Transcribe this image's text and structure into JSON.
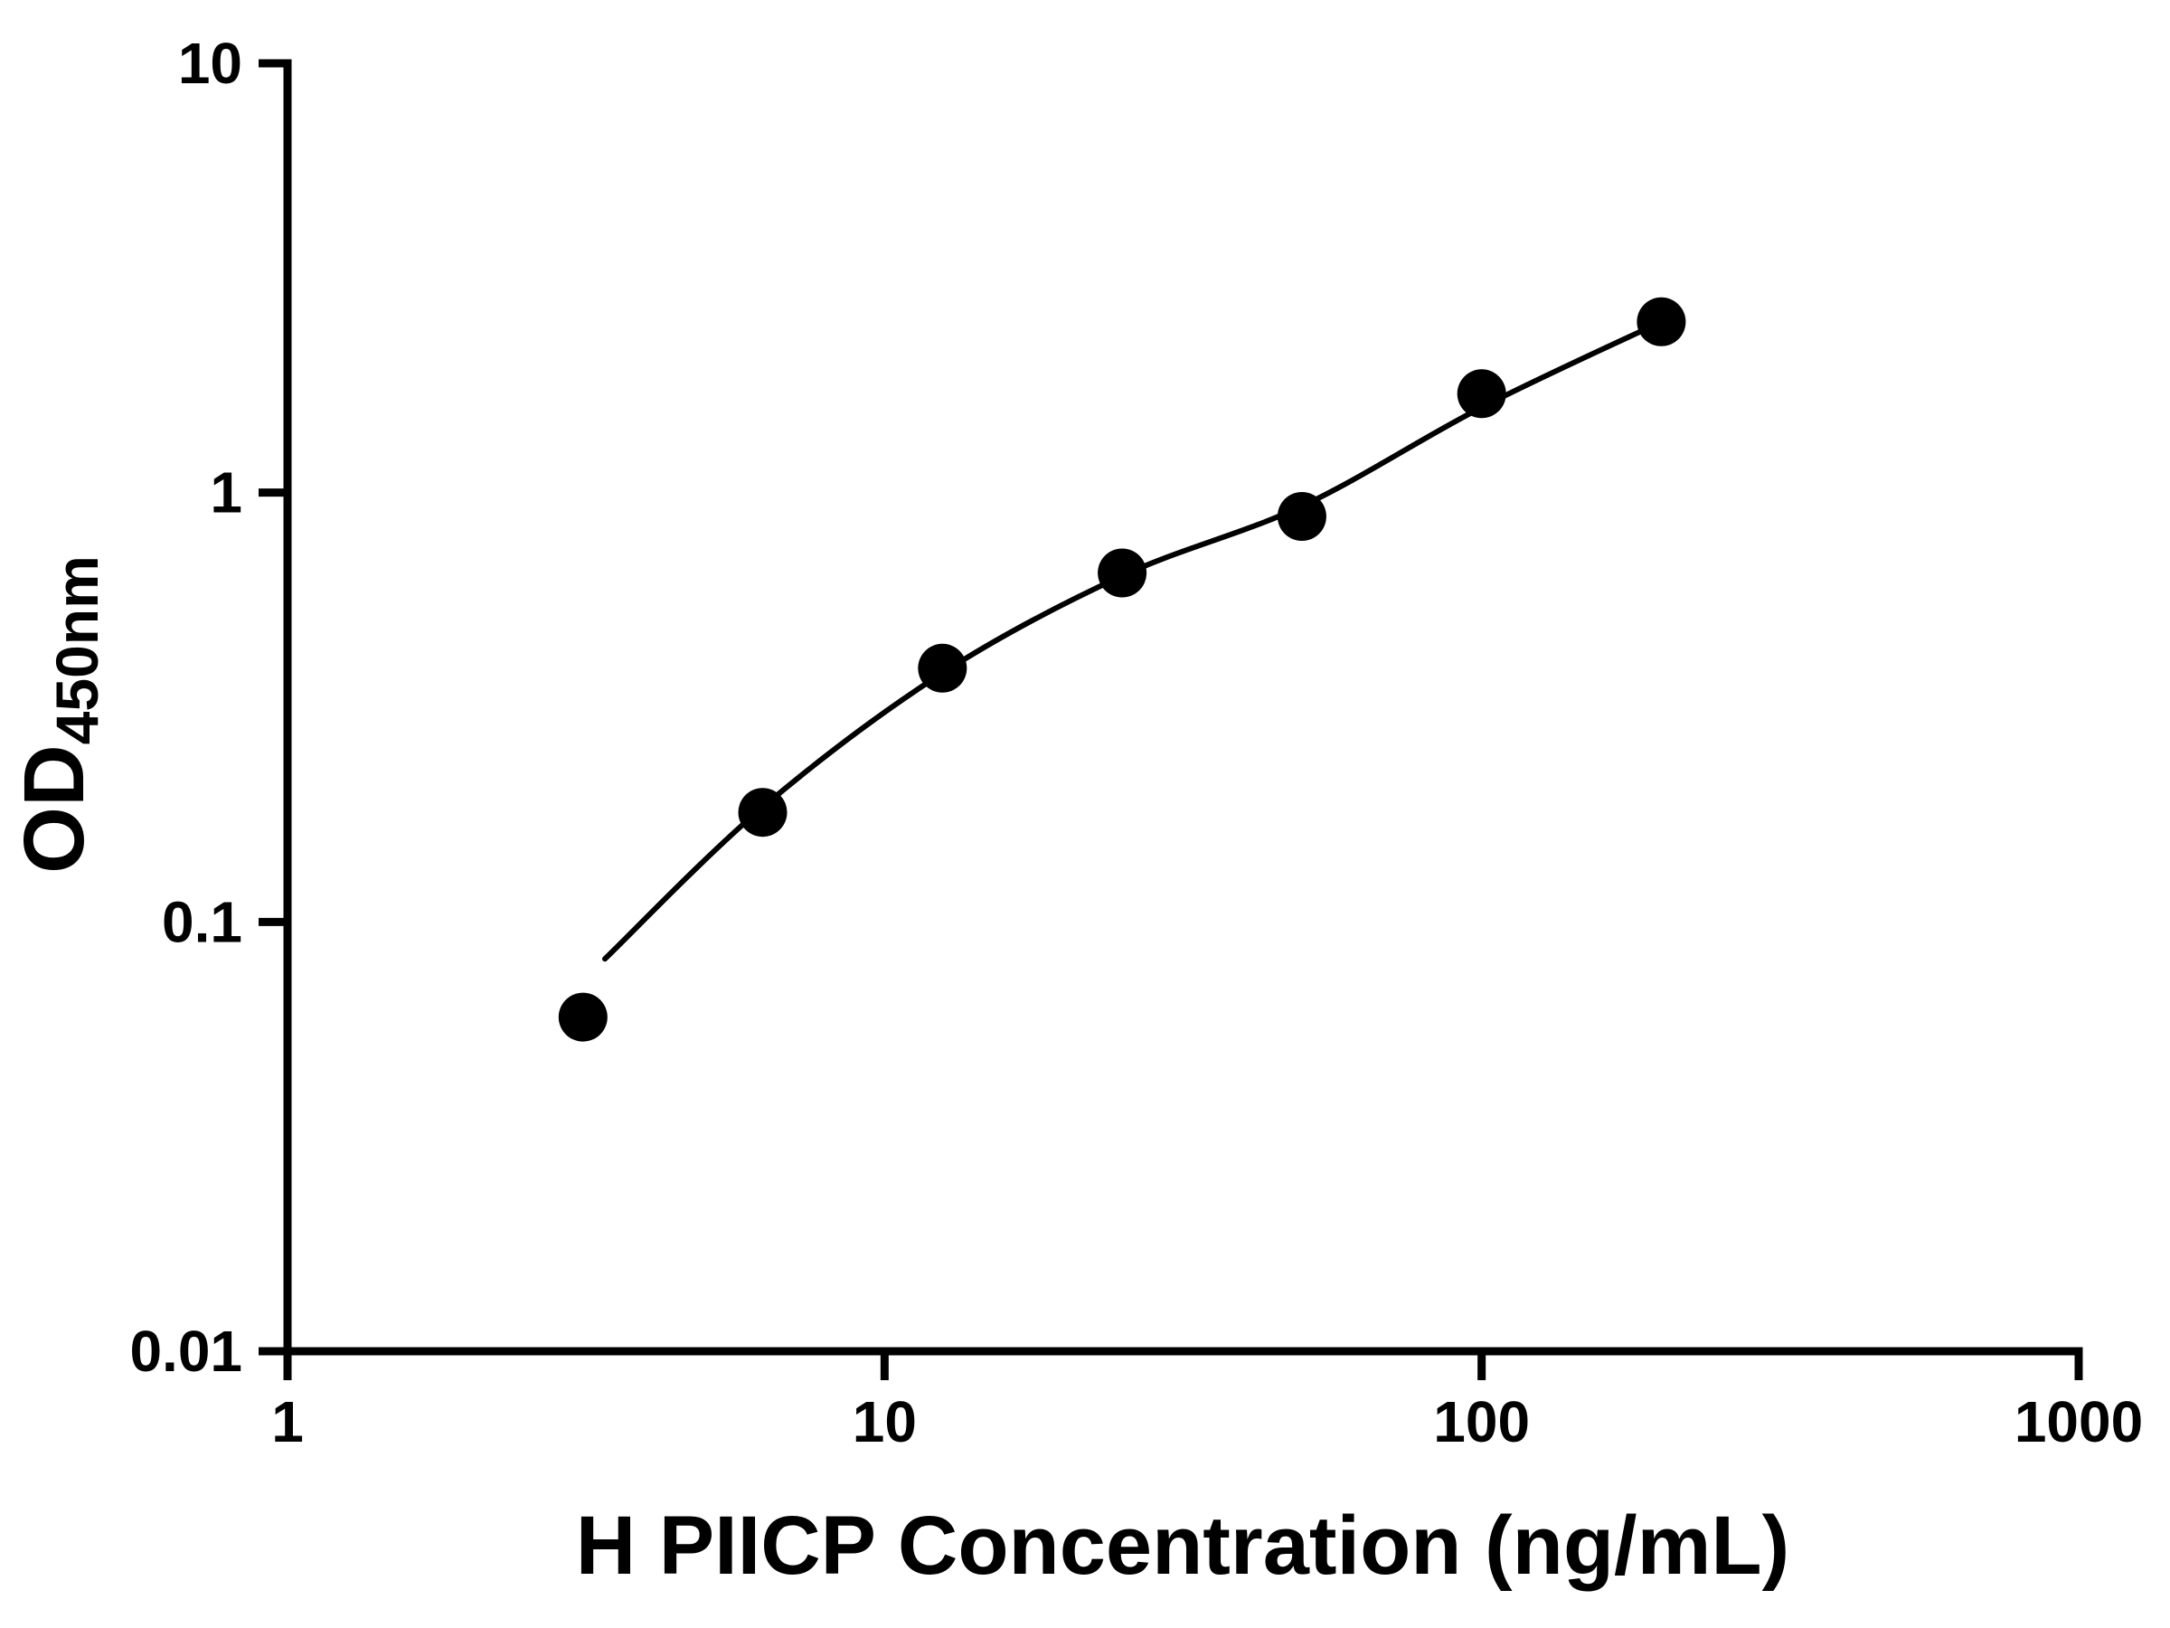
{
  "figure": {
    "background_color": "#ffffff",
    "accent_color": "#000000"
  },
  "chart_data": {
    "type": "scatter",
    "title": "",
    "xlabel": "H PIICP Concentration (ng/mL)",
    "ylabel": "OD450nm",
    "ylabel_main": "OD",
    "ylabel_sub": "450nm",
    "x_scale": "log",
    "y_scale": "log",
    "xlim": [
      1,
      1000
    ],
    "ylim": [
      0.01,
      10
    ],
    "x_ticks": [
      1,
      10,
      100,
      1000
    ],
    "x_tick_labels": [
      "1",
      "10",
      "100",
      "1000"
    ],
    "y_ticks": [
      0.01,
      0.1,
      1,
      10
    ],
    "y_tick_labels": [
      "0.01",
      "0.1",
      "1",
      "10"
    ],
    "grid": false,
    "legend": null,
    "marker_color": "#000000",
    "line_color": "#000000",
    "points": {
      "x": [
        3.125,
        6.25,
        12.5,
        25,
        50,
        100,
        200
      ],
      "y": [
        0.06,
        0.18,
        0.39,
        0.65,
        0.88,
        1.7,
        2.5
      ]
    },
    "fit_curve": {
      "x": [
        3.4,
        6.25,
        12.5,
        25,
        50,
        100,
        200
      ],
      "y": [
        0.082,
        0.185,
        0.38,
        0.64,
        0.93,
        1.58,
        2.5
      ]
    }
  }
}
